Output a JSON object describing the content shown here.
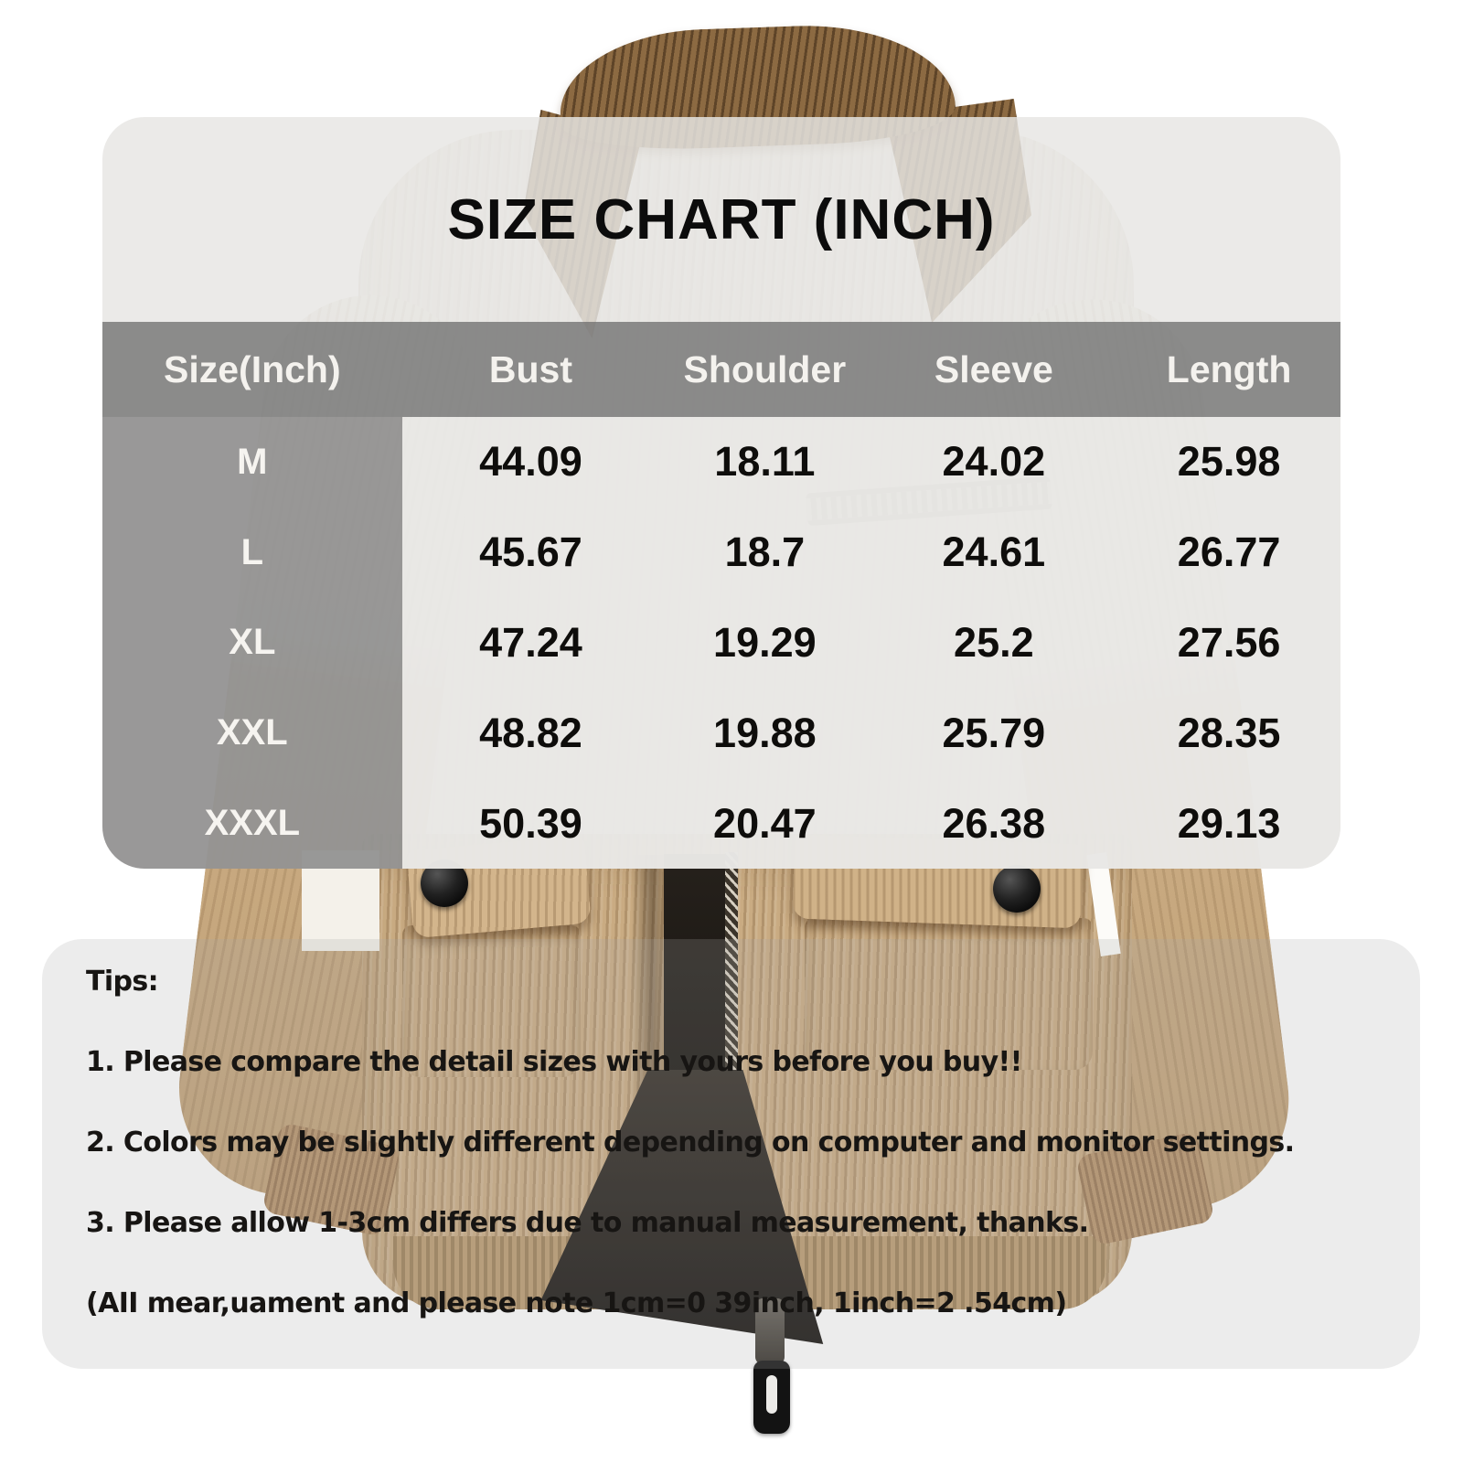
{
  "size_chart": {
    "title": "SIZE CHART (INCH)",
    "columns": [
      "Size(Inch)",
      "Bust",
      "Shoulder",
      "Sleeve",
      "Length"
    ],
    "rows": [
      {
        "size": "M",
        "bust": "44.09",
        "shoulder": "18.11",
        "sleeve": "24.02",
        "length": "25.98"
      },
      {
        "size": "L",
        "bust": "45.67",
        "shoulder": "18.7",
        "sleeve": "24.61",
        "length": "26.77"
      },
      {
        "size": "XL",
        "bust": "47.24",
        "shoulder": "19.29",
        "sleeve": "25.2",
        "length": "27.56"
      },
      {
        "size": "XXL",
        "bust": "48.82",
        "shoulder": "19.88",
        "sleeve": "25.79",
        "length": "28.35"
      },
      {
        "size": "XXXL",
        "bust": "50.39",
        "shoulder": "20.47",
        "sleeve": "26.38",
        "length": "29.13"
      }
    ]
  },
  "tips": {
    "heading": "Tips:",
    "lines": [
      "1. Please compare the detail sizes with yours before you buy!!",
      "2. Colors may be slightly different depending on computer and monitor settings.",
      "3. Please allow 1-3cm differs due to manual measurement, thanks.",
      "(AII mear,uament and please note 1cm=0 39inch, 1inch=2 .54cm)"
    ]
  },
  "colors": {
    "header_band": "#707070",
    "size_column": "#9b9b9b",
    "panel_light": "#e7e6e3",
    "collar_brown": "#8c6a42",
    "jacket_cream": "#ebe7de",
    "jacket_tan": "#c9ab82",
    "button_black": "#131313"
  }
}
